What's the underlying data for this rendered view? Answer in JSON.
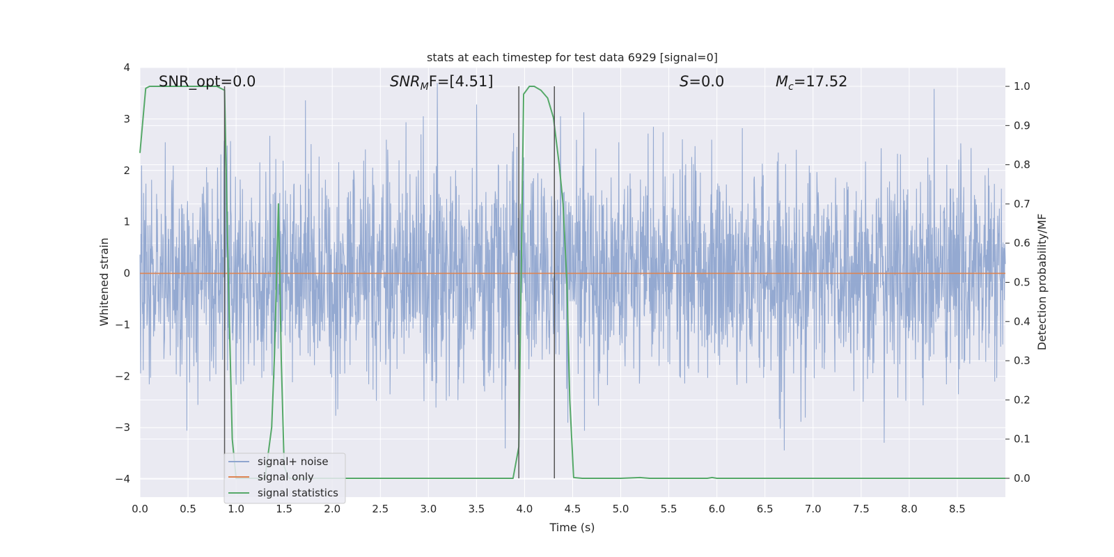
{
  "chart_data": {
    "type": "line",
    "title": "stats at each timestep for test data 6929 [signal=0]",
    "xlabel": "Time (s)",
    "ylabel": "Whitened strain",
    "y2label": "Detection probability/MF",
    "xlim": [
      0.0,
      9.0
    ],
    "ylim": [
      -4.35,
      4.0
    ],
    "y2lim": [
      -0.048,
      1.048
    ],
    "xticks": [
      "0.0",
      "0.5",
      "1.0",
      "1.5",
      "2.0",
      "2.5",
      "3.0",
      "3.5",
      "4.0",
      "4.5",
      "5.0",
      "5.5",
      "6.0",
      "6.5",
      "7.0",
      "7.5",
      "8.0",
      "8.5"
    ],
    "yticks": [
      "4",
      "3",
      "2",
      "1",
      "0",
      "−1",
      "−2",
      "−3",
      "−4"
    ],
    "y2ticks": [
      "1.0",
      "0.9",
      "0.8",
      "0.7",
      "0.6",
      "0.5",
      "0.4",
      "0.3",
      "0.2",
      "0.1",
      "0.0"
    ],
    "grid": true,
    "legend_position": "lower-left",
    "annotations": {
      "snr_opt": "SNR_opt=0.0",
      "snr_mf_main": "SNR",
      "snr_mf_sub": "M",
      "snr_mf_rest": "F=[4.51]",
      "s_main": "S",
      "s_rest": "=0.0",
      "mc_main": "M",
      "mc_sub": "c",
      "mc_rest": "=17.52"
    },
    "vlines": [
      0.88,
      3.94,
      4.31
    ],
    "series": [
      {
        "name": "signal+ noise",
        "color": "#8fa5cf",
        "note_amplitude": "whitened gaussian noise, std ~1, peaks ~±3.6",
        "axis": "left"
      },
      {
        "name": "signal only",
        "color": "#dd8452",
        "axis": "left",
        "x": [
          0.0,
          9.0
        ],
        "y": [
          0.0,
          0.0
        ]
      },
      {
        "name": "signal statistics",
        "color": "#55a868",
        "axis": "right",
        "x": [
          0.0,
          0.06,
          0.1,
          0.2,
          0.3,
          0.5,
          0.7,
          0.8,
          0.88,
          0.92,
          0.96,
          1.0,
          1.1,
          1.2,
          1.3,
          1.37,
          1.4,
          1.44,
          1.47,
          1.5,
          1.55,
          1.6,
          2.0,
          3.0,
          3.5,
          3.88,
          3.94,
          3.99,
          4.05,
          4.1,
          4.17,
          4.24,
          4.3,
          4.36,
          4.4,
          4.44,
          4.47,
          4.51,
          4.6,
          5.0,
          5.2,
          5.3,
          5.9,
          5.95,
          6.0,
          6.5,
          7.0,
          8.0,
          9.0
        ],
        "y": [
          0.83,
          0.995,
          1.0,
          1.0,
          1.0,
          1.0,
          1.0,
          1.0,
          0.99,
          0.5,
          0.1,
          0.0,
          0.0,
          0.0,
          0.0,
          0.13,
          0.32,
          0.7,
          0.3,
          0.03,
          0.0,
          0.0,
          0.0,
          0.0,
          0.0,
          0.0,
          0.08,
          0.98,
          1.0,
          1.0,
          0.99,
          0.97,
          0.92,
          0.8,
          0.7,
          0.5,
          0.2,
          0.002,
          0.0,
          0.0,
          0.002,
          0.0,
          0.0,
          0.002,
          0.0,
          0.0,
          0.0,
          0.0,
          0.0
        ]
      }
    ]
  },
  "colors": {
    "plot_bg": "#eaeaf2",
    "grid": "#ffffff",
    "vline": "#555555"
  }
}
